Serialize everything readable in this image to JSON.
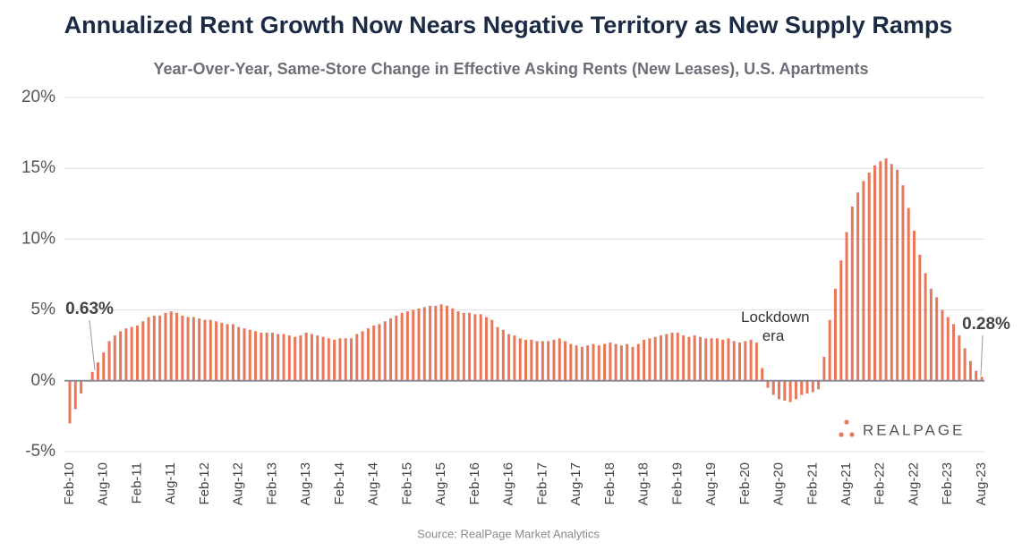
{
  "chart_data": {
    "type": "bar",
    "title": "Annualized Rent Growth Now Nears Negative Territory as New Supply Ramps",
    "subtitle": "Year-Over-Year, Same-Store Change in Effective Asking Rents (New Leases), U.S. Apartments",
    "source": "Source: RealPage Market Analytics",
    "logo": "REALPAGE",
    "annotations": [
      "0.63%",
      "Lockdown era",
      "0.28%"
    ],
    "color": "#e8785a",
    "grid": true,
    "ylim": [
      -5,
      20
    ],
    "yticks": [
      {
        "value": -5,
        "label": "-5%"
      },
      {
        "value": 0,
        "label": "0%"
      },
      {
        "value": 5,
        "label": "5%"
      },
      {
        "value": 10,
        "label": "10%"
      },
      {
        "value": 15,
        "label": "15%"
      },
      {
        "value": 20,
        "label": "20%"
      }
    ],
    "categories": [
      "Feb-10",
      null,
      null,
      null,
      null,
      null,
      "Aug-10",
      null,
      null,
      null,
      null,
      null,
      "Feb-11",
      null,
      null,
      null,
      null,
      null,
      "Aug-11",
      null,
      null,
      null,
      null,
      null,
      "Feb-12",
      null,
      null,
      null,
      null,
      null,
      "Aug-12",
      null,
      null,
      null,
      null,
      null,
      "Feb-13",
      null,
      null,
      null,
      null,
      null,
      "Aug-13",
      null,
      null,
      null,
      null,
      null,
      "Feb-14",
      null,
      null,
      null,
      null,
      null,
      "Aug-14",
      null,
      null,
      null,
      null,
      null,
      "Feb-15",
      null,
      null,
      null,
      null,
      null,
      "Aug-15",
      null,
      null,
      null,
      null,
      null,
      "Feb-16",
      null,
      null,
      null,
      null,
      null,
      "Aug-16",
      null,
      null,
      null,
      null,
      null,
      "Feb-17",
      null,
      null,
      null,
      null,
      null,
      "Aug-17",
      null,
      null,
      null,
      null,
      null,
      "Feb-18",
      null,
      null,
      null,
      null,
      null,
      "Aug-18",
      null,
      null,
      null,
      null,
      null,
      "Feb-19",
      null,
      null,
      null,
      null,
      null,
      "Aug-19",
      null,
      null,
      null,
      null,
      null,
      "Feb-20",
      null,
      null,
      null,
      null,
      null,
      "Aug-20",
      null,
      null,
      null,
      null,
      null,
      "Feb-21",
      null,
      null,
      null,
      null,
      null,
      "Aug-21",
      null,
      null,
      null,
      null,
      null,
      "Feb-22",
      null,
      null,
      null,
      null,
      null,
      "Aug-22",
      null,
      null,
      null,
      null,
      null,
      "Feb-23",
      null,
      null,
      null,
      null,
      null,
      "Aug-23"
    ],
    "values": [
      -3.0,
      -2.0,
      -0.9,
      0.0,
      0.63,
      1.3,
      2.0,
      2.8,
      3.2,
      3.5,
      3.7,
      3.8,
      3.9,
      4.2,
      4.5,
      4.6,
      4.6,
      4.8,
      4.9,
      4.8,
      4.6,
      4.5,
      4.5,
      4.4,
      4.3,
      4.3,
      4.2,
      4.1,
      4.0,
      4.0,
      3.8,
      3.7,
      3.6,
      3.5,
      3.4,
      3.4,
      3.4,
      3.3,
      3.3,
      3.2,
      3.1,
      3.2,
      3.4,
      3.3,
      3.2,
      3.1,
      3.0,
      2.9,
      3.0,
      3.0,
      3.0,
      3.3,
      3.5,
      3.7,
      3.9,
      4.0,
      4.2,
      4.4,
      4.6,
      4.8,
      4.9,
      5.0,
      5.1,
      5.2,
      5.3,
      5.3,
      5.4,
      5.3,
      5.1,
      4.9,
      4.8,
      4.8,
      4.7,
      4.7,
      4.5,
      4.3,
      3.8,
      3.6,
      3.3,
      3.2,
      3.0,
      2.9,
      2.9,
      2.8,
      2.8,
      2.8,
      2.9,
      3.0,
      2.8,
      2.6,
      2.5,
      2.4,
      2.5,
      2.6,
      2.5,
      2.6,
      2.7,
      2.6,
      2.5,
      2.6,
      2.4,
      2.6,
      2.9,
      3.0,
      3.1,
      3.2,
      3.3,
      3.4,
      3.4,
      3.2,
      3.1,
      3.2,
      3.1,
      3.0,
      3.0,
      3.0,
      2.9,
      3.0,
      2.8,
      2.7,
      2.8,
      2.9,
      2.7,
      0.9,
      -0.5,
      -1.0,
      -1.3,
      -1.4,
      -1.5,
      -1.3,
      -1.0,
      -0.9,
      -0.8,
      -0.6,
      1.7,
      4.3,
      6.5,
      8.5,
      10.5,
      12.3,
      13.3,
      14.1,
      14.7,
      15.2,
      15.5,
      15.7,
      15.3,
      14.9,
      13.8,
      12.2,
      10.6,
      8.9,
      7.6,
      6.5,
      5.9,
      5.0,
      4.5,
      4.0,
      3.2,
      2.3,
      1.4,
      0.7,
      0.28
    ]
  }
}
